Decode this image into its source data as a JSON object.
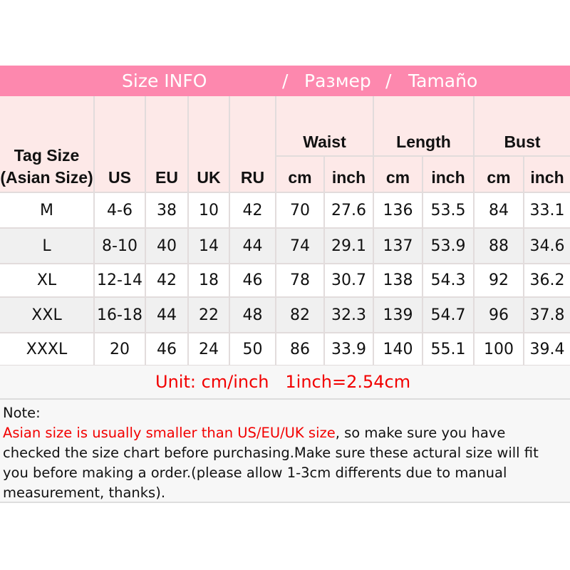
{
  "banner": {
    "en": "Size INFO",
    "sep1": "/",
    "ru": "Размер",
    "sep2": "/",
    "es": "Tamaño",
    "color": "#fd88ae"
  },
  "header": {
    "tag_size": "Tag Size (Asian Size)",
    "us": "US",
    "eu": "EU",
    "uk": "UK",
    "ru": "RU",
    "waist": "Waist",
    "length": "Length",
    "bust": "Bust",
    "cm": "cm",
    "inch": "inch"
  },
  "rows": [
    [
      "M",
      "4-6",
      "38",
      "10",
      "42",
      "70",
      "27.6",
      "136",
      "53.5",
      "84",
      "33.1"
    ],
    [
      "L",
      "8-10",
      "40",
      "14",
      "44",
      "74",
      "29.1",
      "137",
      "53.9",
      "88",
      "34.6"
    ],
    [
      "XL",
      "12-14",
      "42",
      "18",
      "46",
      "78",
      "30.7",
      "138",
      "54.3",
      "92",
      "36.2"
    ],
    [
      "XXL",
      "16-18",
      "44",
      "22",
      "48",
      "82",
      "32.3",
      "139",
      "54.7",
      "96",
      "37.8"
    ],
    [
      "XXXL",
      "20",
      "46",
      "24",
      "50",
      "86",
      "33.9",
      "140",
      "55.1",
      "100",
      "39.4"
    ]
  ],
  "unit": "Unit: cm/inch   1inch=2.54cm",
  "note": {
    "label": "Note:",
    "highlight": "Asian size is usually smaller than US/EU/UK size",
    "text": ", so make sure you have checked the size chart before purchasing.Make sure these actural size will fit you before making a order.(please allow 1-3cm differents due to manual measurement, thanks)."
  }
}
